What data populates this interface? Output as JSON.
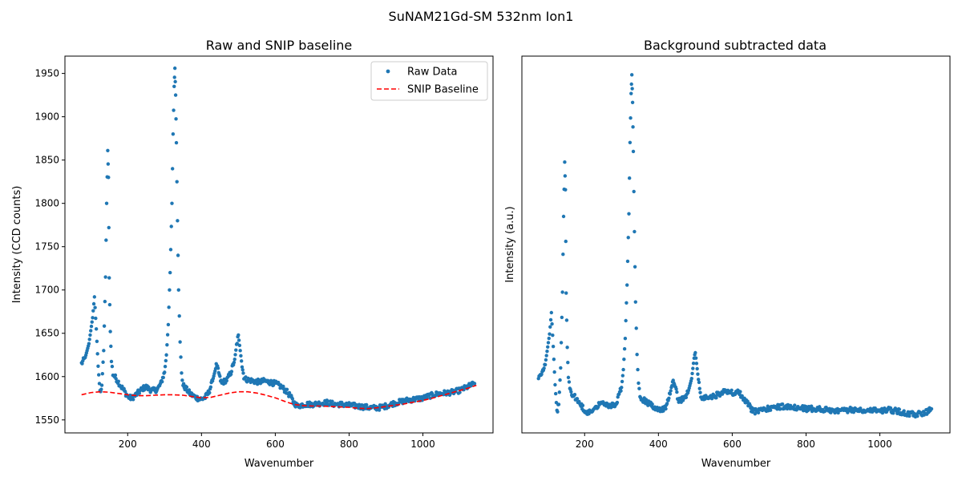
{
  "figure": {
    "suptitle": "SuNAM21Gd-SM 532nm Ion1"
  },
  "chart_data": [
    {
      "type": "scatter",
      "title": "Raw and SNIP baseline",
      "xlabel": "Wavenumber",
      "ylabel": "Intensity (CCD counts)",
      "xlim": [
        30,
        1190
      ],
      "ylim": [
        1535,
        1970
      ],
      "x_ticks": [
        200,
        400,
        600,
        800,
        1000
      ],
      "y_ticks": [
        1550,
        1600,
        1650,
        1700,
        1750,
        1800,
        1850,
        1900,
        1950
      ],
      "grid": false,
      "legend": {
        "position": "top-right",
        "entries": [
          "Raw Data",
          "SNIP Baseline"
        ]
      },
      "series": [
        {
          "name": "Raw Data",
          "kind": "scatter",
          "color": "#1f77b4",
          "x": [
            75,
            85,
            95,
            105,
            110,
            115,
            120,
            125,
            130,
            135,
            140,
            143,
            146,
            148,
            150,
            153,
            156,
            160,
            170,
            180,
            190,
            200,
            210,
            220,
            230,
            240,
            250,
            260,
            270,
            280,
            290,
            300,
            305,
            310,
            315,
            320,
            323,
            326,
            328,
            330,
            332,
            335,
            338,
            342,
            346,
            350,
            360,
            370,
            380,
            390,
            400,
            410,
            420,
            430,
            440,
            445,
            450,
            455,
            460,
            470,
            480,
            490,
            495,
            500,
            505,
            510,
            515,
            520,
            530,
            540,
            550,
            560,
            570,
            580,
            590,
            600,
            610,
            620,
            630,
            640,
            650,
            660,
            680,
            700,
            720,
            740,
            760,
            780,
            800,
            820,
            840,
            860,
            880,
            900,
            920,
            940,
            960,
            980,
            1000,
            1020,
            1040,
            1060,
            1080,
            1100,
            1120,
            1140
          ],
          "y": [
            1615,
            1622,
            1638,
            1668,
            1692,
            1655,
            1612,
            1582,
            1590,
            1630,
            1715,
            1800,
            1861,
            1830,
            1714,
            1652,
            1618,
            1603,
            1597,
            1590,
            1584,
            1577,
            1575,
            1578,
            1582,
            1586,
            1588,
            1585,
            1584,
            1585,
            1592,
            1605,
            1625,
            1660,
            1720,
            1800,
            1880,
            1935,
            1956,
            1925,
            1870,
            1780,
            1700,
            1640,
            1605,
            1590,
            1585,
            1580,
            1577,
            1575,
            1574,
            1576,
            1582,
            1595,
            1612,
            1608,
            1598,
            1592,
            1594,
            1597,
            1605,
            1620,
            1636,
            1648,
            1630,
            1612,
            1600,
            1597,
            1596,
            1595,
            1594,
            1594,
            1595,
            1594,
            1593,
            1592,
            1590,
            1587,
            1583,
            1578,
            1570,
            1566,
            1568,
            1568,
            1569,
            1570,
            1568,
            1568,
            1567,
            1566,
            1565,
            1564,
            1564,
            1566,
            1569,
            1571,
            1573,
            1574,
            1575,
            1578,
            1580,
            1581,
            1582,
            1584,
            1588,
            1592
          ]
        },
        {
          "name": "SNIP Baseline",
          "kind": "line",
          "style": "dashed",
          "color": "#ff0000",
          "x": [
            75,
            100,
            125,
            150,
            175,
            200,
            225,
            250,
            275,
            300,
            325,
            350,
            375,
            400,
            425,
            450,
            475,
            500,
            525,
            550,
            575,
            600,
            625,
            650,
            675,
            700,
            725,
            750,
            775,
            800,
            825,
            850,
            875,
            900,
            925,
            950,
            975,
            1000,
            1025,
            1050,
            1075,
            1100,
            1125,
            1145
          ],
          "y": [
            1579,
            1581.5,
            1582.5,
            1582,
            1580.5,
            1579,
            1578,
            1578,
            1578.5,
            1579,
            1579,
            1578.5,
            1577,
            1575.5,
            1576,
            1578.5,
            1581,
            1582.5,
            1582.5,
            1581,
            1578.5,
            1575.5,
            1571.5,
            1568,
            1566.5,
            1566,
            1566,
            1565.5,
            1565,
            1564.5,
            1563.5,
            1563,
            1564,
            1565.5,
            1567,
            1568.5,
            1570.5,
            1572.5,
            1575,
            1578,
            1581,
            1584,
            1587,
            1590
          ]
        }
      ]
    },
    {
      "type": "scatter",
      "title": "Background subtracted data",
      "xlabel": "Wavenumber",
      "ylabel": "Intensity (a.u.)",
      "xlim": [
        30,
        1190
      ],
      "ylim": [
        -25,
        398
      ],
      "x_ticks": [
        200,
        400,
        600,
        800,
        1000
      ],
      "y_ticks": [],
      "grid": false,
      "series": [
        {
          "name": "Background subtracted",
          "kind": "scatter",
          "color": "#1f77b4",
          "x": [
            75,
            85,
            95,
            105,
            110,
            115,
            120,
            125,
            130,
            135,
            140,
            143,
            146,
            148,
            150,
            153,
            156,
            160,
            170,
            180,
            190,
            200,
            210,
            220,
            230,
            240,
            250,
            260,
            270,
            280,
            290,
            300,
            305,
            310,
            315,
            320,
            323,
            326,
            328,
            330,
            332,
            335,
            338,
            342,
            346,
            350,
            360,
            370,
            380,
            390,
            400,
            410,
            420,
            430,
            440,
            445,
            450,
            455,
            460,
            470,
            480,
            490,
            495,
            500,
            505,
            510,
            515,
            520,
            530,
            540,
            550,
            560,
            570,
            580,
            590,
            600,
            610,
            620,
            630,
            640,
            650,
            660,
            680,
            700,
            720,
            740,
            760,
            780,
            800,
            820,
            840,
            860,
            880,
            900,
            920,
            940,
            960,
            980,
            1000,
            1020,
            1040,
            1060,
            1080,
            1100,
            1120,
            1140
          ],
          "y": [
            36,
            42,
            57,
            86,
            110,
            72,
            29,
            -1,
            7,
            48,
            133,
            218,
            279,
            248,
            132,
            71,
            37,
            22,
            17,
            11,
            6,
            0,
            -3,
            0,
            4,
            8,
            10,
            7,
            6,
            6,
            13,
            26,
            46,
            81,
            141,
            221,
            301,
            356,
            377,
            346,
            291,
            201,
            122,
            63,
            29,
            15,
            12,
            9,
            8,
            2,
            0,
            1,
            5,
            17,
            32,
            28,
            18,
            11,
            12,
            14,
            20,
            36,
            53,
            65,
            47,
            29,
            17,
            14,
            15,
            15,
            16,
            18,
            20,
            21,
            21,
            20,
            21,
            20,
            12,
            10,
            2,
            -1,
            2,
            2,
            4,
            5,
            3,
            3,
            2,
            2,
            2,
            1,
            0,
            0,
            1,
            1,
            1,
            1,
            0,
            1,
            0,
            -2,
            -4,
            -4,
            -3,
            2
          ]
        }
      ]
    }
  ]
}
